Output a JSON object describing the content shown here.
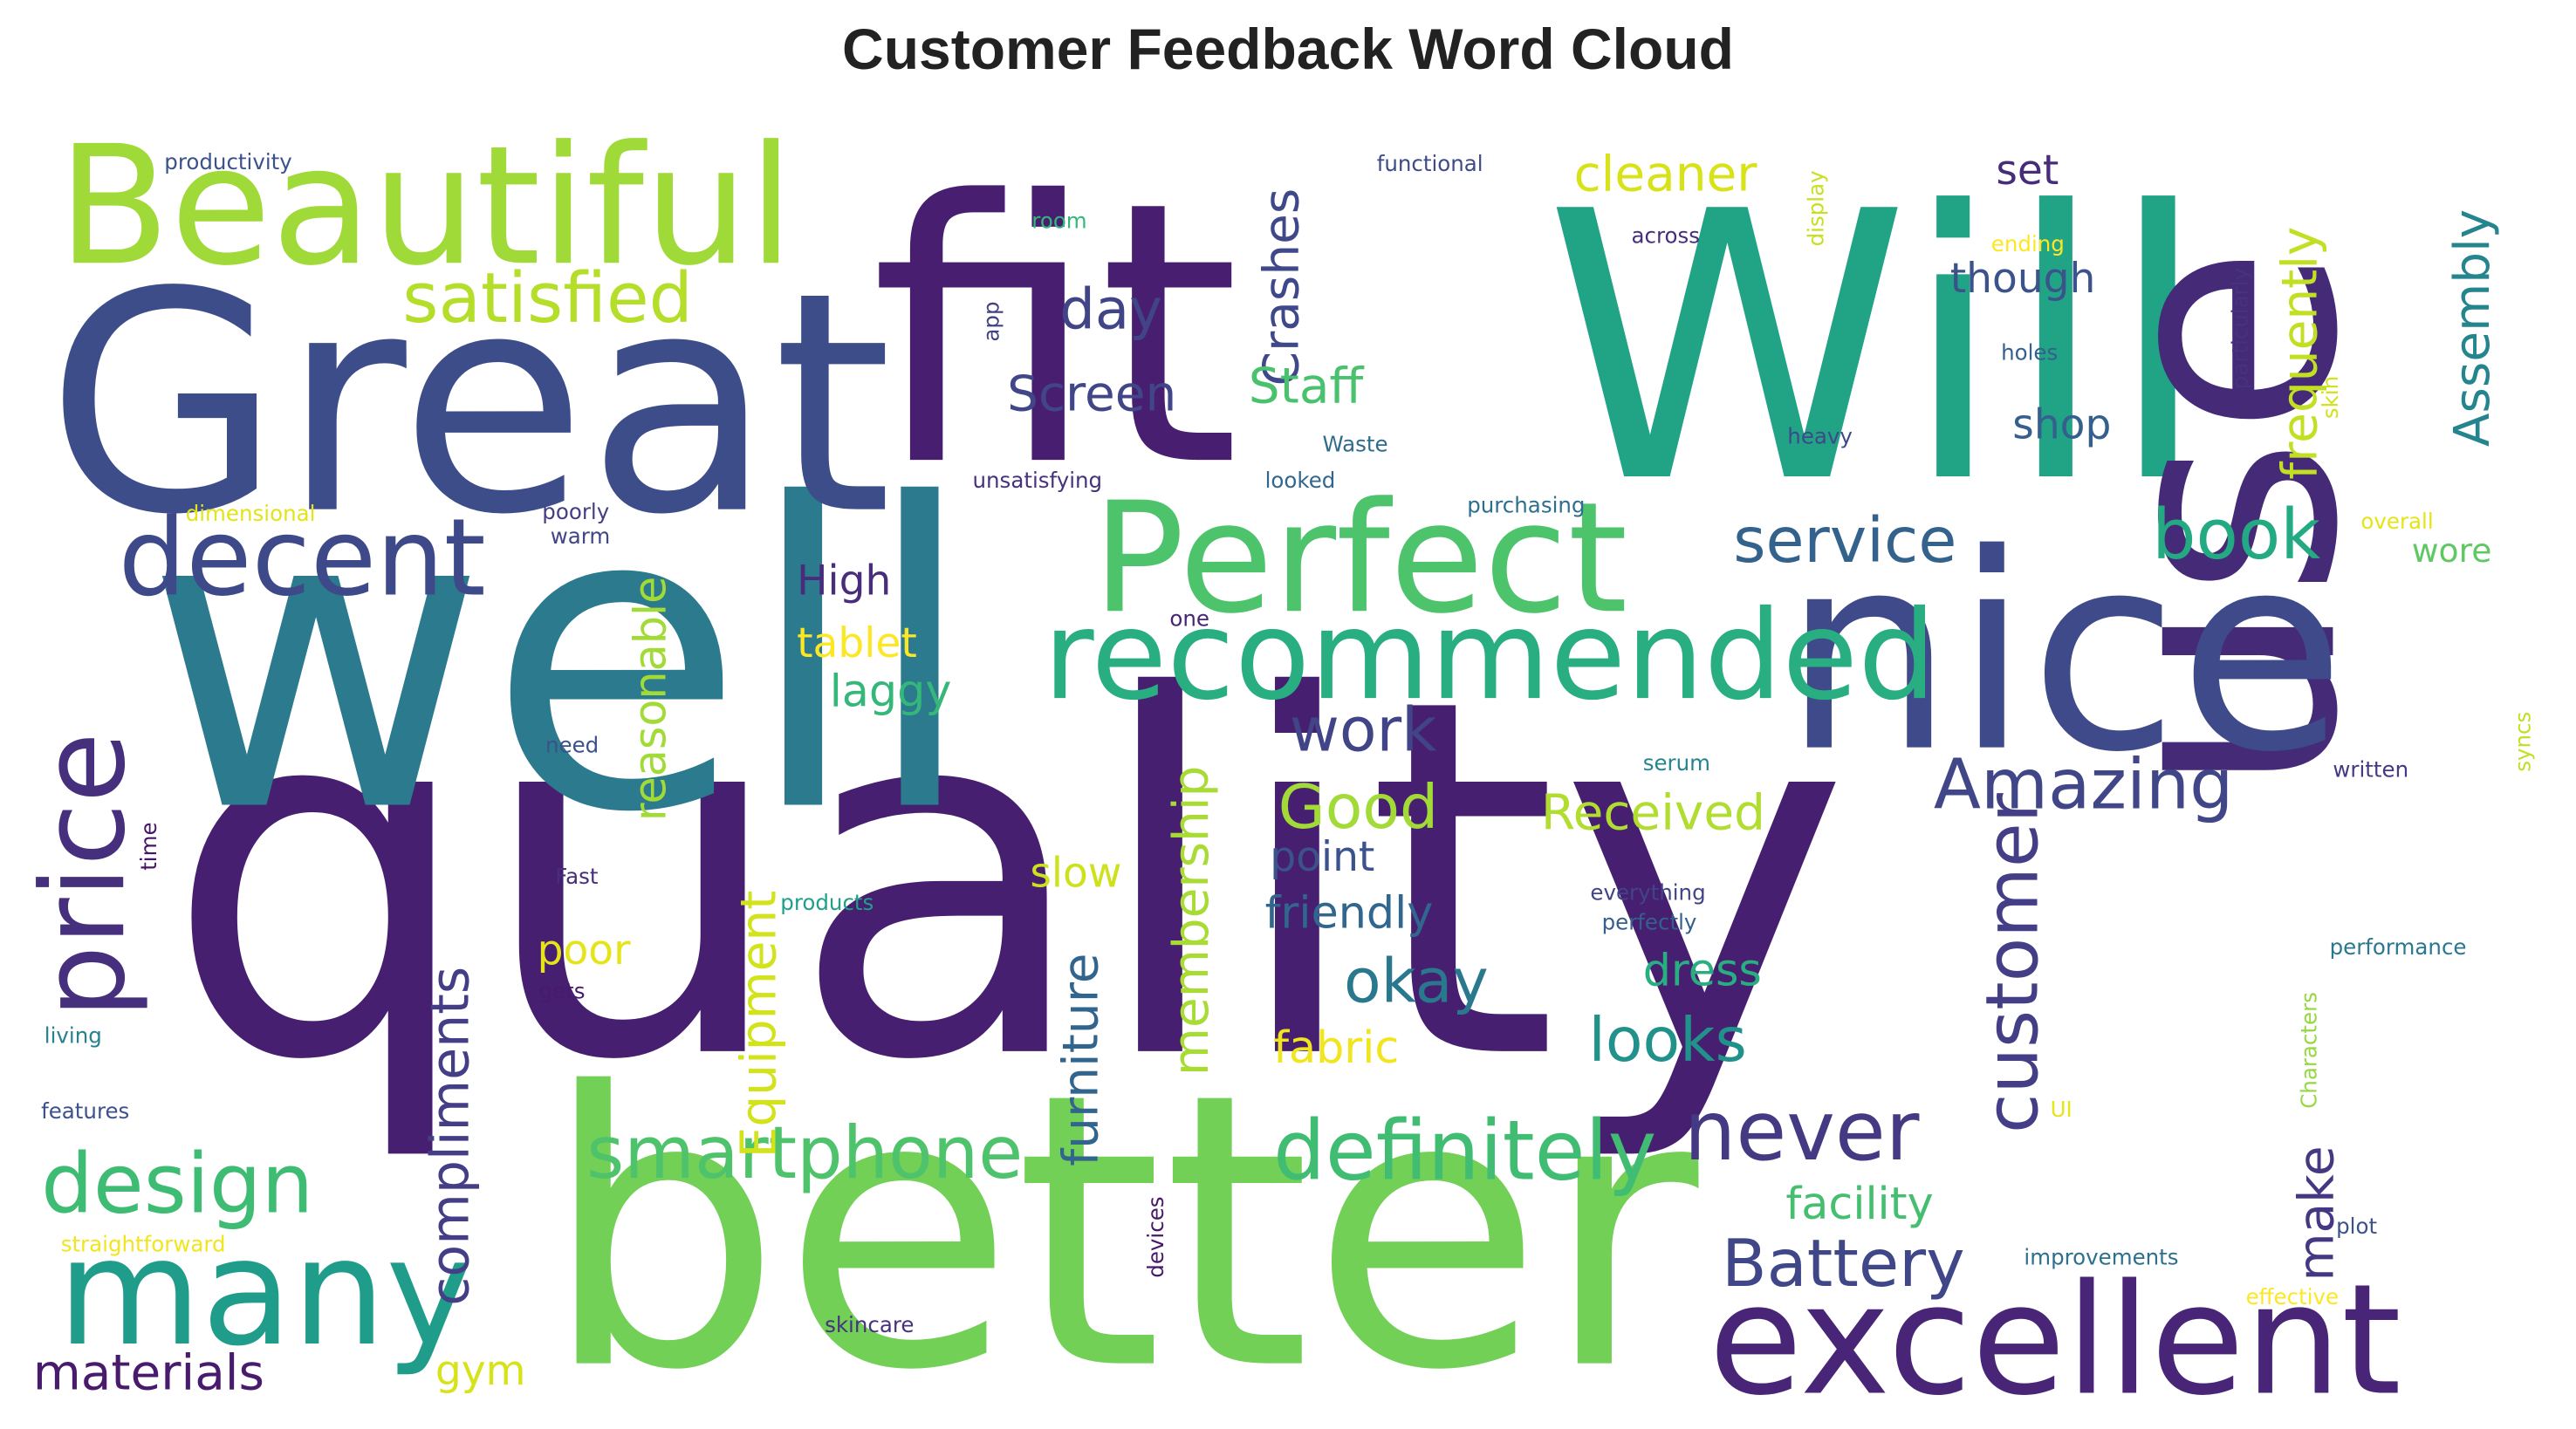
{
  "chart_data": {
    "type": "wordcloud",
    "title": "Customer Feedback Word Cloud",
    "palette": "viridis",
    "words": [
      {
        "text": "quality",
        "weight": 100,
        "color": "#471f70"
      },
      {
        "text": "well",
        "weight": 72,
        "color": "#2c7a8e"
      },
      {
        "text": "better",
        "weight": 67,
        "color": "#72d056"
      },
      {
        "text": "fit",
        "weight": 63,
        "color": "#481f70"
      },
      {
        "text": "Will",
        "weight": 63,
        "color": "#21a386"
      },
      {
        "text": "use",
        "weight": 53,
        "color": "#452a78"
      },
      {
        "text": "Great",
        "weight": 53,
        "color": "#3d4d8a"
      },
      {
        "text": "nice",
        "weight": 47,
        "color": "#3e4a89"
      },
      {
        "text": "Beautiful",
        "weight": 29,
        "color": "#a0da39"
      },
      {
        "text": "excellent",
        "weight": 26,
        "color": "#482576"
      },
      {
        "text": "Perfect",
        "weight": 26,
        "color": "#4dc36b"
      },
      {
        "text": "many",
        "weight": 26,
        "color": "#1f9d8a"
      },
      {
        "text": "recommended",
        "weight": 22,
        "color": "#28ae80"
      },
      {
        "text": "price",
        "weight": 20,
        "color": "#462f7c"
      },
      {
        "text": "decent",
        "weight": 19,
        "color": "#3e4989"
      },
      {
        "text": "design",
        "weight": 14,
        "color": "#3fbc73"
      },
      {
        "text": "definitely",
        "weight": 14,
        "color": "#40bd72"
      },
      {
        "text": "never",
        "weight": 14,
        "color": "#443983"
      },
      {
        "text": "customer",
        "weight": 13,
        "color": "#433e85"
      },
      {
        "text": "smartphone",
        "weight": 13,
        "color": "#4ec36b"
      },
      {
        "text": "satisfied",
        "weight": 12,
        "color": "#b5de2b"
      },
      {
        "text": "book",
        "weight": 12,
        "color": "#24aa83"
      },
      {
        "text": "Amazing",
        "weight": 12,
        "color": "#404688"
      },
      {
        "text": "Battery",
        "weight": 11,
        "color": "#3f4788"
      },
      {
        "text": "service",
        "weight": 11,
        "color": "#33638d"
      },
      {
        "text": "looks",
        "weight": 10,
        "color": "#21918c"
      },
      {
        "text": "okay",
        "weight": 10,
        "color": "#2a788e"
      },
      {
        "text": "work",
        "weight": 10,
        "color": "#414487"
      },
      {
        "text": "Good",
        "weight": 10,
        "color": "#a2da37"
      },
      {
        "text": "day",
        "weight": 9,
        "color": "#414487"
      },
      {
        "text": "compliments",
        "weight": 9,
        "color": "#433e85"
      },
      {
        "text": "materials",
        "weight": 8,
        "color": "#481b6d"
      },
      {
        "text": "Screen",
        "weight": 8,
        "color": "#404688"
      },
      {
        "text": "Received",
        "weight": 8,
        "color": "#b0dd2f"
      },
      {
        "text": "Equipment",
        "weight": 8,
        "color": "#d2e21b"
      },
      {
        "text": "furniture",
        "weight": 8,
        "color": "#32658e"
      },
      {
        "text": "membership",
        "weight": 8,
        "color": "#a8db34"
      },
      {
        "text": "Crashes",
        "weight": 8,
        "color": "#3f4889"
      },
      {
        "text": "Staff",
        "weight": 8,
        "color": "#4ac16d"
      },
      {
        "text": "cleaner",
        "weight": 8,
        "color": "#d8e219"
      },
      {
        "text": "frequently",
        "weight": 8,
        "color": "#c2df23"
      },
      {
        "text": "Assembly",
        "weight": 8,
        "color": "#25858e"
      },
      {
        "text": "make",
        "weight": 8,
        "color": "#453781"
      },
      {
        "text": "reasonable",
        "weight": 7,
        "color": "#a2da37"
      },
      {
        "text": "friendly",
        "weight": 7,
        "color": "#31668e"
      },
      {
        "text": "laggy",
        "weight": 7,
        "color": "#35b779"
      },
      {
        "text": "dress",
        "weight": 7,
        "color": "#28ae80"
      },
      {
        "text": "facility",
        "weight": 7,
        "color": "#44bf70"
      },
      {
        "text": "fabric",
        "weight": 7,
        "color": "#f1e51d"
      },
      {
        "text": "point",
        "weight": 6,
        "color": "#3b528b"
      },
      {
        "text": "slow",
        "weight": 6,
        "color": "#cde11d"
      },
      {
        "text": "tablet",
        "weight": 6,
        "color": "#fde725"
      },
      {
        "text": "High",
        "weight": 6,
        "color": "#472d7b"
      },
      {
        "text": "poor",
        "weight": 6,
        "color": "#e5e419"
      },
      {
        "text": "gym",
        "weight": 6,
        "color": "#d8e219"
      },
      {
        "text": "though",
        "weight": 6,
        "color": "#3b528b"
      },
      {
        "text": "set",
        "weight": 6,
        "color": "#472c7a"
      },
      {
        "text": "shop",
        "weight": 6,
        "color": "#355f8d"
      },
      {
        "text": "wore",
        "weight": 5,
        "color": "#5ec962"
      },
      {
        "text": "productivity",
        "weight": 3,
        "color": "#3b528b"
      },
      {
        "text": "functional",
        "weight": 3,
        "color": "#3e4a89"
      },
      {
        "text": "room",
        "weight": 3,
        "color": "#35b779"
      },
      {
        "text": "app",
        "weight": 3,
        "color": "#424086"
      },
      {
        "text": "display",
        "weight": 3,
        "color": "#c8e020"
      },
      {
        "text": "across",
        "weight": 3,
        "color": "#472f7d"
      },
      {
        "text": "ending",
        "weight": 3,
        "color": "#fde725"
      },
      {
        "text": "particularly",
        "weight": 3,
        "color": "#46337f"
      },
      {
        "text": "holes",
        "weight": 3,
        "color": "#34608d"
      },
      {
        "text": "skin",
        "weight": 3,
        "color": "#d2e21b"
      },
      {
        "text": "heavy",
        "weight": 3,
        "color": "#3e4989"
      },
      {
        "text": "Waste",
        "weight": 3,
        "color": "#2f6c8e"
      },
      {
        "text": "looked",
        "weight": 3,
        "color": "#31678e"
      },
      {
        "text": "unsatisfying",
        "weight": 3,
        "color": "#46327e"
      },
      {
        "text": "dimensional",
        "weight": 3,
        "color": "#e2e418"
      },
      {
        "text": "poorly",
        "weight": 3,
        "color": "#433e85"
      },
      {
        "text": "warm",
        "weight": 3,
        "color": "#404688"
      },
      {
        "text": "purchasing",
        "weight": 3,
        "color": "#2d708e"
      },
      {
        "text": "overall",
        "weight": 3,
        "color": "#e5e419"
      },
      {
        "text": "one",
        "weight": 3,
        "color": "#482475"
      },
      {
        "text": "need",
        "weight": 3,
        "color": "#3b528b"
      },
      {
        "text": "serum",
        "weight": 3,
        "color": "#25858e"
      },
      {
        "text": "written",
        "weight": 3,
        "color": "#443a83"
      },
      {
        "text": "syncs",
        "weight": 3,
        "color": "#c0df25"
      },
      {
        "text": "time",
        "weight": 3,
        "color": "#471365"
      },
      {
        "text": "Fast",
        "weight": 3,
        "color": "#472d7b"
      },
      {
        "text": "products",
        "weight": 3,
        "color": "#1fa088"
      },
      {
        "text": "everything",
        "weight": 3,
        "color": "#414487"
      },
      {
        "text": "perfectly",
        "weight": 3,
        "color": "#355f8d"
      },
      {
        "text": "performance",
        "weight": 3,
        "color": "#2a788e"
      },
      {
        "text": "Characters",
        "weight": 3,
        "color": "#95d840"
      },
      {
        "text": "gets",
        "weight": 3,
        "color": "#481a6c"
      },
      {
        "text": "living",
        "weight": 3,
        "color": "#26828e"
      },
      {
        "text": "UI",
        "weight": 3,
        "color": "#e7e419"
      },
      {
        "text": "features",
        "weight": 3,
        "color": "#3b528b"
      },
      {
        "text": "devices",
        "weight": 3,
        "color": "#48186a"
      },
      {
        "text": "plot",
        "weight": 3,
        "color": "#3b528b"
      },
      {
        "text": "straightforward",
        "weight": 3,
        "color": "#f1e51d"
      },
      {
        "text": "improvements",
        "weight": 3,
        "color": "#2d708e"
      },
      {
        "text": "skincare",
        "weight": 3,
        "color": "#46327e"
      },
      {
        "text": "effective",
        "weight": 3,
        "color": "#fde725"
      }
    ]
  }
}
